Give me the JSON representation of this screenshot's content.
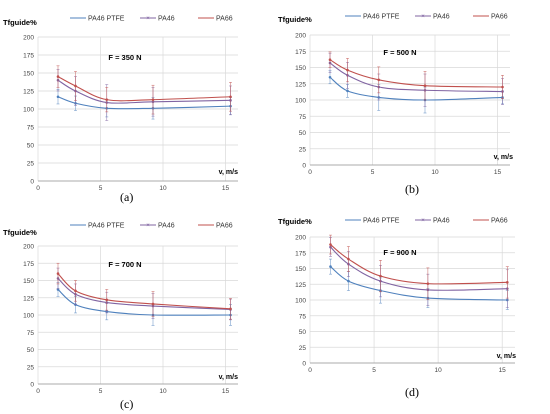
{
  "chart_data": [
    {
      "type": "line",
      "panel_label": "(a)",
      "annotation": "F = 350 N",
      "ylabel": "Tfguide%",
      "xlabel": "v, m/s",
      "xlim": [
        0,
        16
      ],
      "ylim": [
        0,
        200
      ],
      "xticks": [
        0,
        5,
        10,
        15
      ],
      "yticks": [
        0,
        25,
        50,
        75,
        100,
        125,
        150,
        175,
        200
      ],
      "grid": true,
      "legend_position": "top",
      "series": [
        {
          "name": "PA46 PTFE",
          "color": "#4f81bd",
          "x": [
            1.6,
            3.0,
            5.5,
            9.2,
            15.4
          ],
          "y": [
            117,
            108,
            101,
            101,
            104
          ],
          "err": [
            10,
            10,
            12,
            15,
            12
          ]
        },
        {
          "name": "PA46",
          "color": "#8064a2",
          "x": [
            1.6,
            3.0,
            5.5,
            9.2,
            15.4
          ],
          "y": [
            140,
            125,
            109,
            110,
            112
          ],
          "err": [
            15,
            20,
            25,
            20,
            20
          ]
        },
        {
          "name": "PA66",
          "color": "#c0504d",
          "x": [
            1.6,
            3.0,
            5.5,
            9.2,
            15.4
          ],
          "y": [
            145,
            132,
            113,
            113,
            117
          ],
          "err": [
            15,
            20,
            17,
            20,
            20
          ]
        }
      ]
    },
    {
      "type": "line",
      "panel_label": "(b)",
      "annotation": "F = 500 N",
      "ylabel": "Tfguide%",
      "xlabel": "v, m/s",
      "xlim": [
        0,
        16
      ],
      "ylim": [
        0,
        200
      ],
      "xticks": [
        0,
        5,
        10,
        15
      ],
      "yticks": [
        0,
        25,
        50,
        75,
        100,
        125,
        150,
        175,
        200
      ],
      "grid": true,
      "legend_position": "top",
      "series": [
        {
          "name": "PA46 PTFE",
          "color": "#4f81bd",
          "x": [
            1.6,
            3.0,
            5.5,
            9.2,
            15.4
          ],
          "y": [
            135,
            114,
            104,
            100,
            104
          ],
          "err": [
            10,
            10,
            20,
            20,
            10
          ]
        },
        {
          "name": "PA46",
          "color": "#8064a2",
          "x": [
            1.6,
            3.0,
            5.5,
            9.2,
            15.4
          ],
          "y": [
            157,
            138,
            120,
            115,
            113
          ],
          "err": [
            15,
            20,
            20,
            25,
            20
          ]
        },
        {
          "name": "PA66",
          "color": "#c0504d",
          "x": [
            1.6,
            3.0,
            5.5,
            9.2,
            15.4
          ],
          "y": [
            162,
            146,
            131,
            122,
            120
          ],
          "err": [
            12,
            18,
            20,
            22,
            18
          ]
        }
      ]
    },
    {
      "type": "line",
      "panel_label": "(c)",
      "annotation": "F = 700 N",
      "ylabel": "Tfguide%",
      "xlabel": "v, m/s",
      "xlim": [
        0,
        16
      ],
      "ylim": [
        0,
        200
      ],
      "xticks": [
        0,
        5,
        10,
        15
      ],
      "yticks": [
        0,
        25,
        50,
        75,
        100,
        125,
        150,
        175,
        200
      ],
      "grid": true,
      "legend_position": "top",
      "series": [
        {
          "name": "PA46 PTFE",
          "color": "#4f81bd",
          "x": [
            1.6,
            3.0,
            5.5,
            9.2,
            15.4
          ],
          "y": [
            137,
            115,
            105,
            100,
            100
          ],
          "err": [
            10,
            12,
            12,
            15,
            15
          ]
        },
        {
          "name": "PA46",
          "color": "#8064a2",
          "x": [
            1.6,
            3.0,
            5.5,
            9.2,
            15.4
          ],
          "y": [
            153,
            130,
            118,
            113,
            108
          ],
          "err": [
            15,
            15,
            15,
            18,
            15
          ]
        },
        {
          "name": "PA66",
          "color": "#c0504d",
          "x": [
            1.6,
            3.0,
            5.5,
            9.2,
            15.4
          ],
          "y": [
            160,
            135,
            122,
            116,
            109
          ],
          "err": [
            15,
            15,
            15,
            18,
            15
          ]
        }
      ]
    },
    {
      "type": "line",
      "panel_label": "(d)",
      "annotation": "F = 900 N",
      "ylabel": "Tfguide%",
      "xlabel": "v, m/s",
      "xlim": [
        0,
        16
      ],
      "ylim": [
        0,
        200
      ],
      "xticks": [
        0,
        5,
        10,
        15
      ],
      "yticks": [
        0,
        25,
        50,
        75,
        100,
        125,
        150,
        175,
        200
      ],
      "grid": true,
      "legend_position": "top",
      "series": [
        {
          "name": "PA46 PTFE",
          "color": "#4f81bd",
          "x": [
            1.6,
            3.0,
            5.5,
            9.2,
            15.4
          ],
          "y": [
            153,
            130,
            115,
            103,
            100
          ],
          "err": [
            12,
            15,
            20,
            15,
            15
          ]
        },
        {
          "name": "PA46",
          "color": "#8064a2",
          "x": [
            1.6,
            3.0,
            5.5,
            9.2,
            15.4
          ],
          "y": [
            184,
            157,
            130,
            116,
            118
          ],
          "err": [
            15,
            20,
            25,
            25,
            30
          ]
        },
        {
          "name": "PA66",
          "color": "#c0504d",
          "x": [
            1.6,
            3.0,
            5.5,
            9.2,
            15.4
          ],
          "y": [
            188,
            165,
            138,
            126,
            128
          ],
          "err": [
            15,
            20,
            25,
            25,
            25
          ]
        }
      ]
    }
  ]
}
